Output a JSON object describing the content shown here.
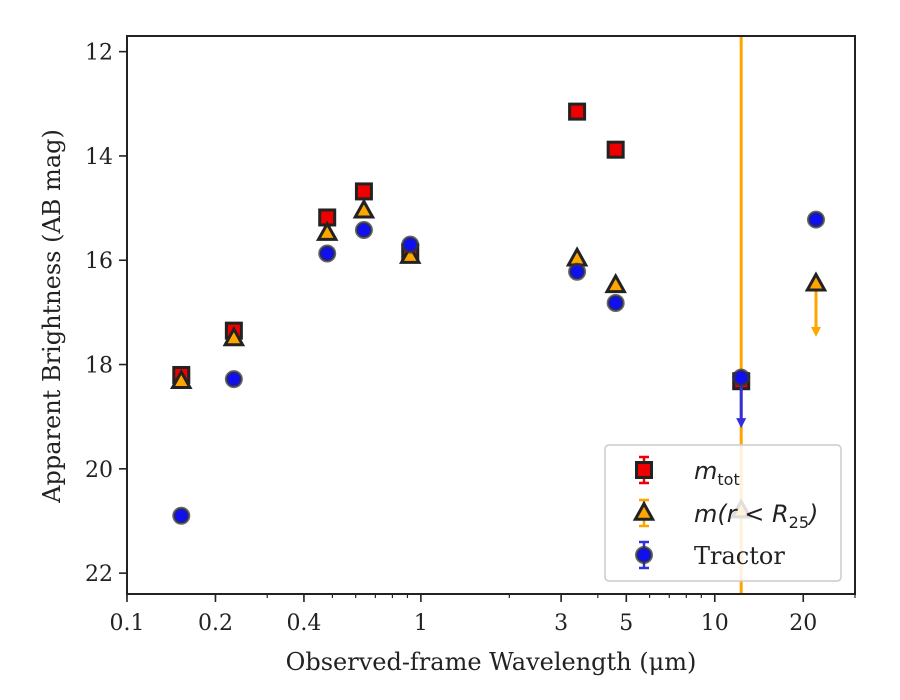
{
  "chart_data": {
    "type": "scatter",
    "xscale": "log",
    "xlim": [
      0.1,
      30
    ],
    "ylim": [
      22.4,
      11.7
    ],
    "y_inverted": true,
    "xlabel": "Observed-frame Wavelength (μm)",
    "ylabel": "Apparent Brightness (AB mag)",
    "xticks": [
      {
        "value": 0.1,
        "label": "0.1"
      },
      {
        "value": 0.2,
        "label": "0.2"
      },
      {
        "value": 0.4,
        "label": "0.4"
      },
      {
        "value": 1,
        "label": "1"
      },
      {
        "value": 3,
        "label": "3"
      },
      {
        "value": 5,
        "label": "5"
      },
      {
        "value": 10,
        "label": "10"
      },
      {
        "value": 20,
        "label": "20"
      }
    ],
    "yticks": [
      {
        "value": 12,
        "label": "12"
      },
      {
        "value": 14,
        "label": "14"
      },
      {
        "value": 16,
        "label": "16"
      },
      {
        "value": 18,
        "label": "18"
      },
      {
        "value": 20,
        "label": "20"
      },
      {
        "value": 22,
        "label": "22"
      }
    ],
    "vertical_line": {
      "x": 12.3,
      "color": "#ffa500"
    },
    "legend_position": "lower-right",
    "series": [
      {
        "key": "mtot",
        "name": "m_tot",
        "legend_main": "m",
        "legend_sub": "tot",
        "marker": "square",
        "color": "#ee0000",
        "errcolor": "#ee0000",
        "points": [
          {
            "x": 0.153,
            "y": 18.2
          },
          {
            "x": 0.231,
            "y": 17.35
          },
          {
            "x": 0.48,
            "y": 15.18
          },
          {
            "x": 0.64,
            "y": 14.68
          },
          {
            "x": 0.92,
            "y": 15.85
          },
          {
            "x": 3.4,
            "y": 13.15
          },
          {
            "x": 4.6,
            "y": 13.88
          },
          {
            "x": 12.3,
            "y": 18.32
          }
        ]
      },
      {
        "key": "mr25",
        "name": "m(r < R25)",
        "legend_main": "m(r < R",
        "legend_sub": "25",
        "legend_close": ")",
        "marker": "triangle",
        "color": "#ffa500",
        "errcolor": "#ffa500",
        "points": [
          {
            "x": 0.153,
            "y": 18.32
          },
          {
            "x": 0.231,
            "y": 17.5
          },
          {
            "x": 0.48,
            "y": 15.48
          },
          {
            "x": 0.64,
            "y": 15.05
          },
          {
            "x": 0.92,
            "y": 15.92
          },
          {
            "x": 3.4,
            "y": 15.97
          },
          {
            "x": 4.6,
            "y": 16.48
          },
          {
            "x": 12.3,
            "y": 20.8
          },
          {
            "x": 22.1,
            "y": 16.45,
            "upper_limit_to": 17.45
          }
        ]
      },
      {
        "key": "tractor",
        "name": "Tractor",
        "legend_main": "Tractor",
        "marker": "circle",
        "color": "#1010ee",
        "errcolor": "#3030dd",
        "points": [
          {
            "x": 0.153,
            "y": 20.9
          },
          {
            "x": 0.231,
            "y": 18.28
          },
          {
            "x": 0.48,
            "y": 15.87
          },
          {
            "x": 0.64,
            "y": 15.42
          },
          {
            "x": 0.92,
            "y": 15.7
          },
          {
            "x": 3.4,
            "y": 16.22
          },
          {
            "x": 4.6,
            "y": 16.82
          },
          {
            "x": 12.3,
            "y": 18.25,
            "upper_limit_to": 19.2
          },
          {
            "x": 22.1,
            "y": 15.22
          }
        ]
      }
    ]
  }
}
